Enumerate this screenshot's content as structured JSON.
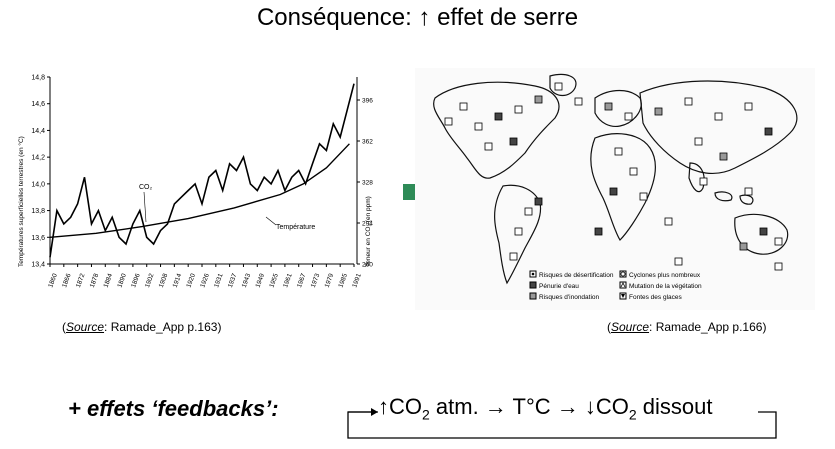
{
  "title": "Conséquence: ↑ effet de serre",
  "sources": {
    "left_prefix": "(",
    "left_source_word": "Source",
    "left_rest": ": Ramade_App p.163)",
    "right_prefix": "(",
    "right_source_word": "Source",
    "right_rest": ": Ramade_App p.166)"
  },
  "feedback": {
    "label": "+ effets ‘feedbacks’:",
    "chain_part1": "↑CO",
    "chain_sub1": "2",
    "chain_part2": " atm. → T°C → ↓CO",
    "chain_sub2": "2",
    "chain_part3": " dissout"
  },
  "colors": {
    "arrow": "#2e8b57"
  },
  "chart_data": {
    "type": "line",
    "y_left_label": "Températures superficielles terrestres (en °C)",
    "y_right_label": "Teneur en CO₂ (en ppm)",
    "y_left_ticks": [
      "14,8",
      "14,6",
      "14,4",
      "14,2",
      "14,0",
      "13,8",
      "13,6",
      "13,4"
    ],
    "y_right_ticks": [
      "396",
      "362",
      "328",
      "294",
      "260"
    ],
    "x_ticks": [
      "1860",
      "1866",
      "1872",
      "1878",
      "1884",
      "1890",
      "1896",
      "1902",
      "1908",
      "1914",
      "1920",
      "1926",
      "1932",
      "1938",
      "1944",
      "1950",
      "1956",
      "1962",
      "1968",
      "1974",
      "1980",
      "1986",
      "1992"
    ],
    "x_ticks_shown": [
      "1860",
      "1866",
      "1872",
      "1878",
      "1884",
      "1890",
      "1896",
      "1902",
      "1908",
      "1914",
      "1920",
      "1926",
      "1931",
      "1937",
      "1943",
      "1949",
      "1955",
      "1961",
      "1967",
      "1973",
      "1979",
      "1985",
      "1991"
    ],
    "annotations": [
      "CO₂",
      "Température"
    ],
    "ylim_left": [
      13.4,
      14.8
    ],
    "series": [
      {
        "name": "Température",
        "x": [
          1860,
          1863,
          1866,
          1869,
          1872,
          1875,
          1878,
          1881,
          1884,
          1887,
          1890,
          1893,
          1896,
          1899,
          1902,
          1905,
          1908,
          1911,
          1914,
          1917,
          1920,
          1923,
          1926,
          1929,
          1932,
          1935,
          1938,
          1941,
          1944,
          1947,
          1950,
          1953,
          1956,
          1959,
          1962,
          1965,
          1968,
          1971,
          1974,
          1977,
          1980,
          1983,
          1986,
          1989,
          1992
        ],
        "y": [
          13.45,
          13.8,
          13.7,
          13.75,
          13.85,
          14.05,
          13.7,
          13.8,
          13.65,
          13.75,
          13.6,
          13.55,
          13.7,
          13.8,
          13.6,
          13.55,
          13.65,
          13.7,
          13.85,
          13.9,
          13.95,
          14.0,
          13.85,
          14.05,
          14.1,
          13.95,
          14.15,
          14.1,
          14.2,
          14.0,
          13.95,
          14.05,
          14.0,
          14.1,
          13.95,
          14.05,
          14.1,
          14.0,
          14.15,
          14.3,
          14.25,
          14.45,
          14.35,
          14.55,
          14.75
        ]
      },
      {
        "name": "CO₂",
        "x": [
          1860,
          1880,
          1900,
          1920,
          1940,
          1960,
          1970,
          1980,
          1990
        ],
        "y": [
          13.6,
          13.63,
          13.68,
          13.74,
          13.82,
          13.92,
          14.0,
          14.12,
          14.3
        ]
      }
    ]
  },
  "map": {
    "legend": [
      {
        "symbol": "desert",
        "label": "Risques de désertification"
      },
      {
        "symbol": "cyclone",
        "label": "Cyclones plus nombreux"
      },
      {
        "symbol": "water",
        "label": "Pénurie d'eau"
      },
      {
        "symbol": "vegetation",
        "label": "Mutation de la végétation"
      },
      {
        "symbol": "flood",
        "label": "Risques d'inondation"
      },
      {
        "symbol": "ice",
        "label": "Fontes des glaces"
      }
    ]
  }
}
